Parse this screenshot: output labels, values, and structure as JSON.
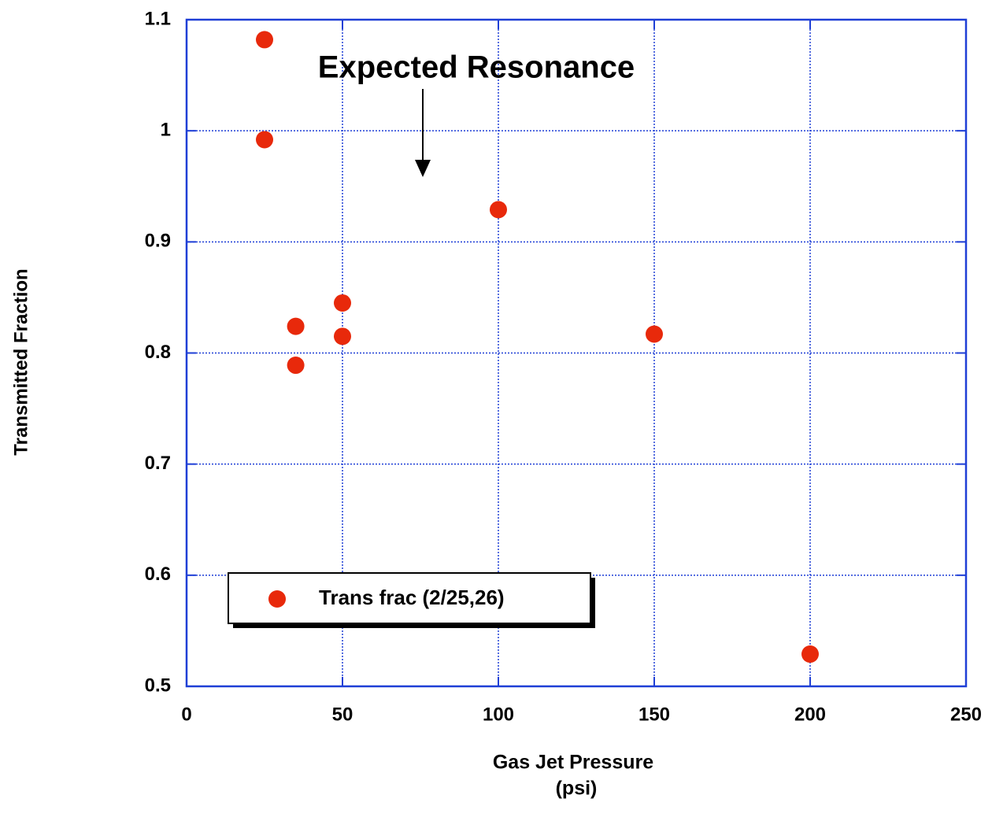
{
  "chart_data": {
    "type": "scatter",
    "xlabel": [
      "Gas Jet Pressure",
      "(psi)"
    ],
    "ylabel": "Transmitted Fraction",
    "annotation": "Expected Resonance",
    "series": [
      {
        "name": "Trans frac (2/25,26)",
        "color": "#e8290b",
        "x": [
          25,
          25,
          35,
          35,
          50,
          50,
          100,
          150,
          200
        ],
        "values": [
          1.082,
          0.992,
          0.824,
          0.789,
          0.845,
          0.815,
          0.929,
          0.817,
          0.529
        ]
      }
    ],
    "xlim": [
      0,
      250
    ],
    "xticks": [
      0,
      50,
      100,
      150,
      200,
      250
    ],
    "ylim": [
      0.5,
      1.1
    ],
    "yticks": [
      0.5,
      0.6,
      0.7,
      0.8,
      0.9,
      1,
      1.1
    ],
    "grid": true,
    "legend": "lower left"
  }
}
